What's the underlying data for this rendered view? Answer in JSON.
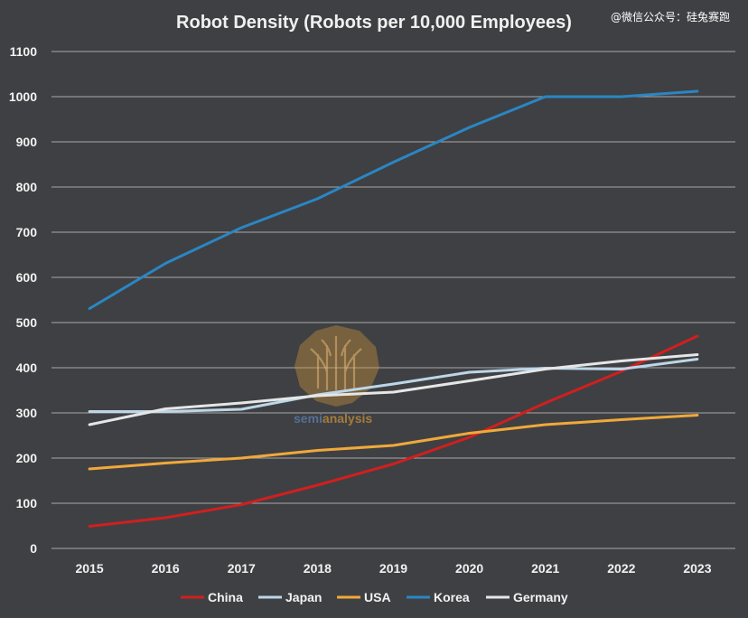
{
  "watermark": "@微信公众号：硅兔赛跑",
  "logo": {
    "text_a": "semi",
    "text_b": "analysis"
  },
  "chart_data": {
    "type": "line",
    "title": "Robot Density (Robots per 10,000 Employees)",
    "xlabel": "",
    "ylabel": "",
    "x": [
      "2015",
      "2016",
      "2017",
      "2018",
      "2019",
      "2020",
      "2021",
      "2022",
      "2023"
    ],
    "ylim": [
      0,
      1100
    ],
    "yticks": [
      "0",
      "100",
      "200",
      "300",
      "400",
      "500",
      "600",
      "700",
      "800",
      "900",
      "1000",
      "1100"
    ],
    "grid": true,
    "legend_position": "bottom",
    "series": [
      {
        "name": "China",
        "color": "#d11f1f",
        "values": [
          49,
          68,
          97,
          140,
          187,
          246,
          322,
          392,
          470
        ]
      },
      {
        "name": "Japan",
        "color": "#bcd6e8",
        "values": [
          303,
          303,
          308,
          340,
          364,
          390,
          399,
          397,
          419
        ]
      },
      {
        "name": "USA",
        "color": "#f0a93a",
        "values": [
          176,
          189,
          200,
          217,
          228,
          255,
          274,
          285,
          295
        ]
      },
      {
        "name": "Korea",
        "color": "#2a86c4",
        "values": [
          531,
          631,
          710,
          774,
          855,
          932,
          1000,
          1000,
          1012
        ]
      },
      {
        "name": "Germany",
        "color": "#e6e6e6",
        "values": [
          274,
          309,
          322,
          338,
          346,
          371,
          397,
          415,
          429
        ]
      }
    ]
  }
}
